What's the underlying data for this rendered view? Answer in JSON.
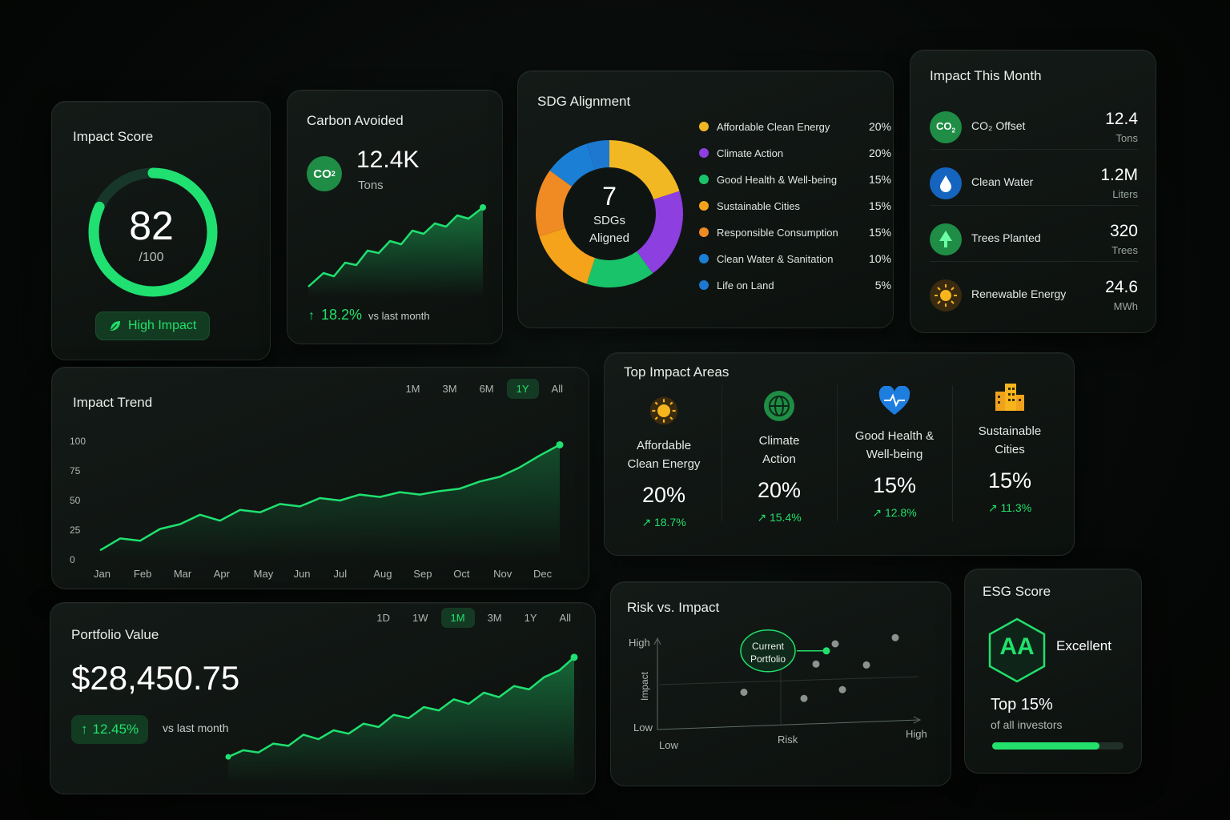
{
  "impact_score": {
    "title": "Impact Score",
    "value": "82",
    "max_label": "/100",
    "score_fraction": 0.82,
    "badge": "High Impact"
  },
  "carbon_avoided": {
    "title": "Carbon Avoided",
    "badge_text": "CO",
    "badge_sub": "2",
    "value": "12.4K",
    "unit": "Tons",
    "change": "18.2%",
    "change_label": "vs last month"
  },
  "sdg": {
    "title": "SDG Alignment",
    "center_value": "7",
    "center_line1": "SDGs",
    "center_line2": "Aligned",
    "items": [
      {
        "label": "Affordable Clean Energy",
        "pct": "20%",
        "value": 20,
        "color": "#f2b823"
      },
      {
        "label": "Climate Action",
        "pct": "20%",
        "value": 20,
        "color": "#8d3fe0"
      },
      {
        "label": "Good Health & Well-being",
        "pct": "15%",
        "value": 15,
        "color": "#19c36a"
      },
      {
        "label": "Sustainable Cities",
        "pct": "15%",
        "value": 15,
        "color": "#f5a31a"
      },
      {
        "label": "Responsible Consumption",
        "pct": "15%",
        "value": 15,
        "color": "#f08a22"
      },
      {
        "label": "Clean Water & Sanitation",
        "pct": "10%",
        "value": 10,
        "color": "#1b7fd6"
      },
      {
        "label": "Life on Land",
        "pct": "5%",
        "value": 5,
        "color": "#1e78d0"
      }
    ]
  },
  "impact_month": {
    "title": "Impact This Month",
    "items": [
      {
        "label": "CO₂ Offset",
        "value": "12.4",
        "unit": "Tons",
        "icon": "co2-icon",
        "color": "#1f8d45"
      },
      {
        "label": "Clean Water",
        "value": "1.2M",
        "unit": "Liters",
        "icon": "water-drop-icon",
        "color": "#1565c0"
      },
      {
        "label": "Trees Planted",
        "value": "320",
        "unit": "Trees",
        "icon": "tree-icon",
        "color": "#1f8d45"
      },
      {
        "label": "Renewable Energy",
        "value": "24.6",
        "unit": "MWh",
        "icon": "sun-icon",
        "color": "#3a2b10"
      }
    ]
  },
  "impact_trend": {
    "title": "Impact Trend",
    "ranges": [
      "1M",
      "3M",
      "6M",
      "1Y",
      "All"
    ],
    "active_range": "1Y",
    "chart_data": {
      "type": "line",
      "categories": [
        "Jan",
        "Feb",
        "Mar",
        "Apr",
        "May",
        "Jun",
        "Jul",
        "Aug",
        "Sep",
        "Oct",
        "Nov",
        "Dec"
      ],
      "x": [
        0,
        0.5,
        1,
        1.5,
        2,
        2.5,
        3,
        3.5,
        4,
        4.5,
        5,
        5.5,
        6,
        6.5,
        7,
        7.5,
        8,
        8.5,
        9,
        9.5,
        10,
        10.5,
        11,
        11.5
      ],
      "values": [
        8,
        18,
        16,
        26,
        30,
        38,
        33,
        42,
        40,
        47,
        45,
        52,
        50,
        55,
        53,
        57,
        55,
        58,
        60,
        66,
        70,
        78,
        88,
        97
      ],
      "ylim": [
        0,
        100
      ],
      "yticks": [
        "0",
        "25",
        "50",
        "75",
        "100"
      ],
      "grid": false
    }
  },
  "top_areas": {
    "title": "Top Impact Areas",
    "items": [
      {
        "line1": "Affordable",
        "line2": "Clean Energy",
        "pct": "20%",
        "change": "↗ 18.7%",
        "icon": "sun-icon"
      },
      {
        "line1": "Climate",
        "line2": "Action",
        "pct": "20%",
        "change": "↗ 15.4%",
        "icon": "globe-icon"
      },
      {
        "line1": "Good Health &",
        "line2": "Well-being",
        "pct": "15%",
        "change": "↗ 12.8%",
        "icon": "heart-pulse-icon"
      },
      {
        "line1": "Sustainable",
        "line2": "Cities",
        "pct": "15%",
        "change": "↗ 11.3%",
        "icon": "buildings-icon"
      }
    ]
  },
  "portfolio": {
    "title": "Portfolio Value",
    "value": "$28,450.75",
    "change": "12.45%",
    "change_label": "vs last month",
    "ranges": [
      "1D",
      "1W",
      "1M",
      "3M",
      "1Y",
      "All"
    ],
    "active_range": "1M",
    "chart_data": {
      "type": "area",
      "x": [
        0,
        1,
        2,
        3,
        4,
        5,
        6,
        7,
        8,
        9,
        10,
        11,
        12,
        13,
        14,
        15,
        16,
        17,
        18,
        19,
        20,
        21,
        22,
        23
      ],
      "values": [
        10,
        16,
        14,
        22,
        20,
        30,
        26,
        34,
        31,
        40,
        37,
        48,
        45,
        55,
        52,
        62,
        58,
        68,
        64,
        74,
        71,
        82,
        88,
        100
      ],
      "ylim": [
        0,
        110
      ]
    }
  },
  "risk": {
    "title": "Risk vs. Impact",
    "y_axis_label": "Impact",
    "y_high": "High",
    "y_low": "Low",
    "x_low": "Low",
    "x_axis_label": "Risk",
    "x_high": "High",
    "current_line1": "Current",
    "current_line2": "Portfolio",
    "chart_data": {
      "type": "scatter",
      "current": {
        "x": 0.42,
        "y": 0.82
      },
      "points": [
        {
          "x": 0.7,
          "y": 0.9
        },
        {
          "x": 0.95,
          "y": 0.97
        },
        {
          "x": 0.62,
          "y": 0.67
        },
        {
          "x": 0.83,
          "y": 0.66
        },
        {
          "x": 0.32,
          "y": 0.35
        },
        {
          "x": 0.57,
          "y": 0.28
        },
        {
          "x": 0.73,
          "y": 0.38
        }
      ],
      "xlim": [
        0,
        1
      ],
      "ylim": [
        0,
        1
      ]
    }
  },
  "esg": {
    "title": "ESG Score",
    "rating": "AA",
    "rating_label": "Excellent",
    "rank": "Top 15%",
    "rank_label": "of all investors",
    "progress": 0.82
  }
}
